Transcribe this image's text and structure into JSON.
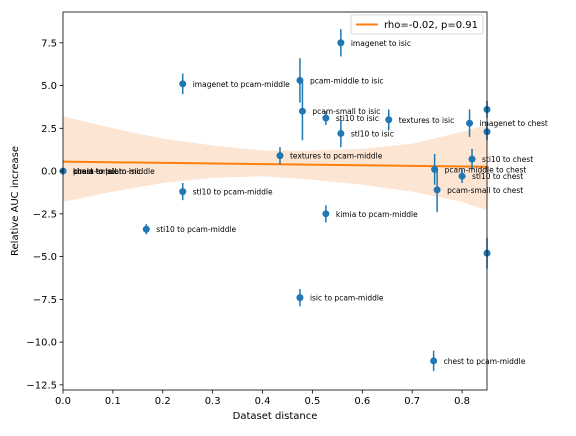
{
  "chart_data": {
    "type": "scatter",
    "title": "",
    "xlabel": "Dataset distance",
    "ylabel": "Relative AUC increase",
    "xlim": [
      0.0,
      0.85
    ],
    "ylim": [
      -12.8,
      9.3
    ],
    "xticks": [
      0.0,
      0.1,
      0.2,
      0.3,
      0.4,
      0.5,
      0.6,
      0.7,
      0.8
    ],
    "xtick_labels": [
      "0.0",
      "0.1",
      "0.2",
      "0.3",
      "0.4",
      "0.5",
      "0.6",
      "0.7",
      "0.8"
    ],
    "yticks": [
      -12.5,
      -10.0,
      -7.5,
      -5.0,
      -2.5,
      0.0,
      2.5,
      5.0,
      7.5
    ],
    "ytick_labels": [
      "−12.5",
      "−10.0",
      "−7.5",
      "−5.0",
      "−2.5",
      "0.0",
      "2.5",
      "5.0",
      "7.5"
    ],
    "legend": {
      "position": "top-right",
      "entries": [
        {
          "label": "rho=-0.02, p=0.91",
          "color": "#ff7f0e"
        }
      ]
    },
    "colors": {
      "points": "#1f77b4",
      "regression": "#ff7f0e",
      "ci_band": "#fde5d3"
    },
    "regression": {
      "x": [
        0.0,
        0.85
      ],
      "y": [
        0.55,
        0.25
      ]
    },
    "ci_band": {
      "x": [
        0.0,
        0.1,
        0.2,
        0.3,
        0.4,
        0.5,
        0.6,
        0.7,
        0.8,
        0.85
      ],
      "upper": [
        3.2,
        2.5,
        1.9,
        1.5,
        1.2,
        1.2,
        1.3,
        1.6,
        2.3,
        2.7
      ],
      "lower": [
        -1.8,
        -1.2,
        -0.7,
        -0.4,
        -0.3,
        -0.5,
        -0.8,
        -1.2,
        -1.8,
        -2.3
      ]
    },
    "points": [
      {
        "label": "chest to isic",
        "x": 0.0,
        "y": 0.0,
        "err": 0.0
      },
      {
        "label": "pcam-middle to isic",
        "x": 0.475,
        "y": 5.3,
        "err": 1.3
      },
      {
        "label": "imagenet to isic",
        "x": 0.557,
        "y": 7.5,
        "err": 0.8
      },
      {
        "label": "imagenet to pcam-middle",
        "x": 0.24,
        "y": 5.1,
        "err": 0.6
      },
      {
        "label": "pcam-small to isic",
        "x": 0.48,
        "y": 3.5,
        "err": 1.7
      },
      {
        "label": "sti10 to isic",
        "x": 0.527,
        "y": 3.1,
        "err": 0.4
      },
      {
        "label": "textures to isic",
        "x": 0.653,
        "y": 3.0,
        "err": 0.6
      },
      {
        "label": "stl10 to isic",
        "x": 0.557,
        "y": 2.2,
        "err": 0.8
      },
      {
        "label": "imagenet to chest",
        "x": 0.815,
        "y": 2.8,
        "err": 0.8
      },
      {
        "label": "textures to pcam-middle",
        "x": 0.435,
        "y": 0.9,
        "err": 0.5
      },
      {
        "label": "sti10 to chest",
        "x": 0.82,
        "y": 0.7,
        "err": 0.6
      },
      {
        "label": "pcam-middle to chest",
        "x": 0.745,
        "y": 0.1,
        "err": 0.9
      },
      {
        "label": "stl10 to chest",
        "x": 0.8,
        "y": -0.3,
        "err": 0.4
      },
      {
        "label": "pcam-small to chest",
        "x": 0.75,
        "y": -1.1,
        "err": 1.3
      },
      {
        "label": "stl10 to pcam-middle",
        "x": 0.24,
        "y": -1.2,
        "err": 0.5
      },
      {
        "label": "kimia to pcam-middle",
        "x": 0.527,
        "y": -2.5,
        "err": 0.5
      },
      {
        "label": "sti10 to pcam-middle",
        "x": 0.167,
        "y": -3.4,
        "err": 0.3
      },
      {
        "label": "isic to pcam-middle",
        "x": 0.475,
        "y": -7.4,
        "err": 0.5
      },
      {
        "label": "chest to pcam-middle",
        "x": 0.743,
        "y": -11.1,
        "err": 0.6
      },
      {
        "label": "",
        "x": 0.85,
        "y": 3.6,
        "err": 0.5
      },
      {
        "label": "",
        "x": 0.85,
        "y": 2.3,
        "err": 0.5
      },
      {
        "label": "",
        "x": 0.85,
        "y": -4.8,
        "err": 0.9
      }
    ],
    "overlap_labels": [
      {
        "text": "kimia to isic",
        "x": 0.0,
        "y": 0.0
      },
      {
        "text": "pcam-small to isic",
        "x": 0.0,
        "y": 0.0
      },
      {
        "text": "chest to pcam-middle",
        "x": 0.0,
        "y": 0.0
      }
    ]
  }
}
